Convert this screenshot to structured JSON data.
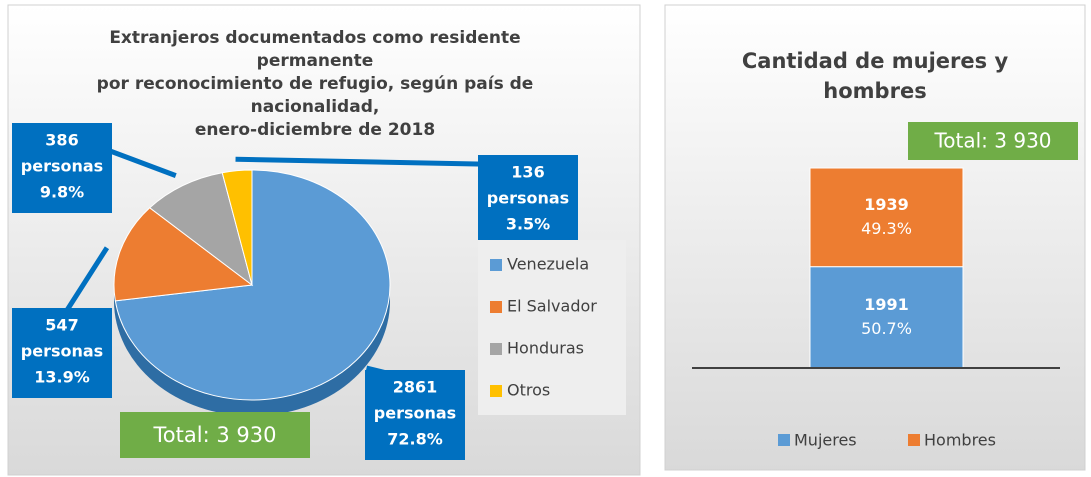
{
  "chart_data": [
    {
      "type": "pie",
      "title": [
        "Extranjeros documentados como residente",
        "permanente",
        "por reconocimiento de refugio, según país de",
        "nacionalidad,",
        "enero-diciembre de 2018"
      ],
      "categories": [
        "Venezuela",
        "El Salvador",
        "Honduras",
        "Otros"
      ],
      "values": [
        2861,
        547,
        386,
        136
      ],
      "unit_label": "personas",
      "percent_labels": [
        "72.8%",
        "13.9%",
        "9.8%",
        "3.5%"
      ],
      "colors": [
        "#5b9bd5",
        "#ed7d31",
        "#a5a5a5",
        "#ffc000"
      ],
      "legend": "right",
      "annotation": "Total: 3 930"
    },
    {
      "type": "stacked_bar",
      "title": [
        "Cantidad de mujeres y",
        "hombres"
      ],
      "categories": [
        null
      ],
      "series": [
        {
          "name": "Mujeres",
          "color": "#5b9bd5",
          "values": [
            1991
          ],
          "percent_labels": [
            "50.7%"
          ]
        },
        {
          "name": "Hombres",
          "color": "#ed7d31",
          "values": [
            1939
          ],
          "percent_labels": [
            "49.3%"
          ]
        }
      ],
      "legend": "bottom",
      "annotation": "Total: 3 930"
    }
  ]
}
